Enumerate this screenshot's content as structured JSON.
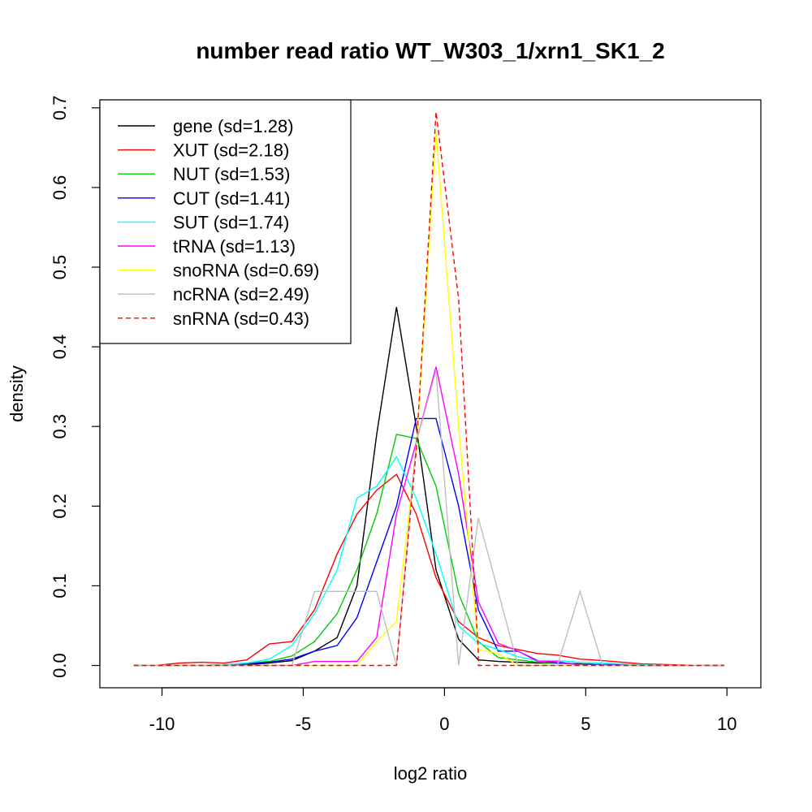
{
  "chart_data": {
    "type": "line",
    "title": "number read ratio WT_W303_1/xrn1_SK1_2",
    "xlabel": "log2 ratio",
    "ylabel": "density",
    "xlim": [
      -12.2,
      11.2
    ],
    "ylim": [
      -0.028,
      0.71
    ],
    "xticks": [
      -10,
      -5,
      0,
      5,
      10
    ],
    "yticks": [
      0.0,
      0.1,
      0.2,
      0.3,
      0.4,
      0.5,
      0.6,
      0.7
    ],
    "ytick_labels": [
      "0.0",
      "0.1",
      "0.2",
      "0.3",
      "0.4",
      "0.5",
      "0.6",
      "0.7"
    ],
    "legend_position": "top-left",
    "grid": false,
    "series": [
      {
        "name": "gene (sd=1.28)",
        "color": "#000000",
        "dash": false,
        "x": [
          -11,
          -10.2,
          -9.4,
          -8.6,
          -7.8,
          -7.0,
          -6.2,
          -5.4,
          -4.6,
          -3.8,
          -3.1,
          -2.4,
          -1.7,
          -1.0,
          -0.3,
          0.5,
          1.2,
          1.9,
          2.6,
          3.3,
          4.0,
          4.8,
          5.6,
          6.3,
          7.0,
          8.0,
          9.0,
          9.9
        ],
        "y": [
          0,
          0,
          0,
          0,
          0,
          0.001,
          0.003,
          0.006,
          0.018,
          0.035,
          0.1,
          0.29,
          0.45,
          0.3,
          0.12,
          0.033,
          0.007,
          0.005,
          0.004,
          0.003,
          0.003,
          0.002,
          0.001,
          0.001,
          0,
          0,
          0,
          0
        ]
      },
      {
        "name": "XUT (sd=2.18)",
        "color": "#ff0000",
        "dash": false,
        "x": [
          -11,
          -10.2,
          -9.4,
          -8.6,
          -7.8,
          -7.0,
          -6.2,
          -5.4,
          -4.6,
          -3.8,
          -3.1,
          -2.4,
          -1.7,
          -1.0,
          -0.3,
          0.5,
          1.2,
          1.9,
          2.6,
          3.3,
          4.0,
          4.8,
          5.6,
          6.3,
          7.0,
          8.0,
          9.0,
          9.9
        ],
        "y": [
          0,
          0,
          0.003,
          0.004,
          0.003,
          0.007,
          0.027,
          0.03,
          0.07,
          0.14,
          0.19,
          0.22,
          0.24,
          0.19,
          0.11,
          0.055,
          0.035,
          0.025,
          0.02,
          0.015,
          0.013,
          0.008,
          0.006,
          0.004,
          0.002,
          0.001,
          0,
          0
        ]
      },
      {
        "name": "NUT (sd=1.53)",
        "color": "#00cd00",
        "dash": false,
        "x": [
          -11,
          -10.2,
          -9.4,
          -8.6,
          -7.8,
          -7.0,
          -6.2,
          -5.4,
          -4.6,
          -3.8,
          -3.1,
          -2.4,
          -1.7,
          -1.0,
          -0.3,
          0.5,
          1.2,
          1.9,
          2.6,
          3.3,
          4.0,
          4.8,
          5.6,
          6.3,
          7.0,
          8.0,
          9.0,
          9.9
        ],
        "y": [
          0,
          0,
          0,
          0,
          0.001,
          0.003,
          0.005,
          0.012,
          0.03,
          0.065,
          0.12,
          0.19,
          0.29,
          0.285,
          0.225,
          0.09,
          0.03,
          0.01,
          0.007,
          0.004,
          0.003,
          0.002,
          0.001,
          0.001,
          0,
          0,
          0,
          0
        ]
      },
      {
        "name": "CUT (sd=1.41)",
        "color": "#0000ff",
        "dash": false,
        "x": [
          -11,
          -10.2,
          -9.4,
          -8.6,
          -7.8,
          -7.0,
          -6.2,
          -5.4,
          -4.6,
          -3.8,
          -3.1,
          -2.4,
          -1.7,
          -1.0,
          -0.3,
          0.5,
          1.2,
          1.9,
          2.6,
          3.3,
          4.0,
          4.8,
          5.6,
          6.3,
          7.0,
          8.0,
          9.0,
          9.9
        ],
        "y": [
          0,
          0,
          0,
          0,
          0.001,
          0.002,
          0.004,
          0.008,
          0.018,
          0.025,
          0.06,
          0.13,
          0.2,
          0.31,
          0.31,
          0.2,
          0.07,
          0.018,
          0.018,
          0.006,
          0.003,
          0.002,
          0.001,
          0.001,
          0,
          0,
          0,
          0
        ]
      },
      {
        "name": "SUT (sd=1.74)",
        "color": "#00ffff",
        "dash": false,
        "x": [
          -11,
          -10.2,
          -9.4,
          -8.6,
          -7.8,
          -7.0,
          -6.2,
          -5.4,
          -4.6,
          -3.8,
          -3.1,
          -2.4,
          -1.7,
          -1.0,
          -0.3,
          0.5,
          1.2,
          1.9,
          2.6,
          3.3,
          4.0,
          4.8,
          5.6,
          6.3,
          7.0,
          8.0,
          9.0,
          9.9
        ],
        "y": [
          0,
          0,
          0,
          0,
          0.001,
          0.003,
          0.008,
          0.025,
          0.065,
          0.12,
          0.21,
          0.225,
          0.262,
          0.21,
          0.14,
          0.05,
          0.028,
          0.02,
          0.011,
          0.006,
          0.006,
          0.004,
          0.003,
          0.002,
          0.001,
          0,
          0,
          0
        ]
      },
      {
        "name": "tRNA (sd=1.13)",
        "color": "#ff00ff",
        "dash": false,
        "x": [
          -11,
          -10.2,
          -9.4,
          -8.6,
          -7.8,
          -7.0,
          -6.2,
          -5.4,
          -4.6,
          -3.8,
          -3.1,
          -2.4,
          -1.7,
          -1.0,
          -0.3,
          0.5,
          1.2,
          1.9,
          2.6,
          3.3,
          4.0,
          4.8,
          5.6,
          6.3,
          7.0,
          8.0,
          9.0,
          9.9
        ],
        "y": [
          0,
          0,
          0,
          0,
          0,
          0,
          0,
          0,
          0.005,
          0.005,
          0.005,
          0.035,
          0.19,
          0.28,
          0.375,
          0.24,
          0.08,
          0.028,
          0.018,
          0.005,
          0.005,
          0,
          0,
          0,
          0,
          0,
          0,
          0
        ]
      },
      {
        "name": "snoRNA (sd=0.69)",
        "color": "#ffff00",
        "dash": false,
        "x": [
          -11,
          -10.2,
          -9.4,
          -8.6,
          -7.8,
          -7.0,
          -6.2,
          -5.4,
          -4.6,
          -3.8,
          -3.1,
          -2.4,
          -1.7,
          -1.0,
          -0.3,
          0.5,
          1.15,
          1.2,
          1.9,
          2.6,
          3.3,
          4.0,
          4.8,
          5.6,
          6.3,
          7.0,
          8.0,
          9.0,
          9.9
        ],
        "y": [
          0,
          0,
          0,
          0,
          0,
          0,
          0,
          0,
          0,
          0,
          0,
          0.03,
          0.055,
          0.27,
          0.67,
          0.3,
          0.04,
          0.02,
          0.015,
          0,
          0,
          0,
          0,
          0,
          0,
          0,
          0,
          0,
          0
        ]
      },
      {
        "name": "ncRNA (sd=2.49)",
        "color": "#bebebe",
        "dash": false,
        "x": [
          -11,
          -10.2,
          -9.4,
          -8.6,
          -7.8,
          -7.0,
          -6.2,
          -5.4,
          -4.6,
          -3.8,
          -3.1,
          -2.4,
          -1.7,
          -1.0,
          -0.3,
          0.5,
          1.2,
          1.9,
          2.6,
          3.3,
          4.0,
          4.8,
          5.6,
          6.3,
          7.0,
          8.0,
          9.0,
          9.9
        ],
        "y": [
          0,
          0,
          0,
          0,
          0,
          0,
          0,
          0,
          0.093,
          0.093,
          0.093,
          0.093,
          0,
          0.28,
          0.37,
          0,
          0.185,
          0.093,
          0,
          0,
          0,
          0.093,
          0,
          0,
          0,
          0,
          0,
          0
        ]
      },
      {
        "name": "snRNA (sd=0.43)",
        "color": "#ff0000",
        "dash": true,
        "x": [
          -11,
          -10.2,
          -9.4,
          -8.6,
          -7.8,
          -7.0,
          -6.2,
          -5.4,
          -4.6,
          -3.8,
          -3.1,
          -2.4,
          -1.7,
          -1.0,
          -0.3,
          0.5,
          1.2,
          1.2,
          1.9,
          2.6,
          3.3,
          4.0,
          4.8,
          5.6,
          6.3,
          7.0,
          8.0,
          9.0,
          9.9
        ],
        "y": [
          0,
          0,
          0,
          0,
          0,
          0,
          0,
          0,
          0,
          0,
          0,
          0,
          0,
          0.27,
          0.695,
          0.46,
          0.015,
          0,
          0,
          0,
          0,
          0,
          0,
          0,
          0,
          0,
          0,
          0,
          0
        ]
      }
    ]
  }
}
